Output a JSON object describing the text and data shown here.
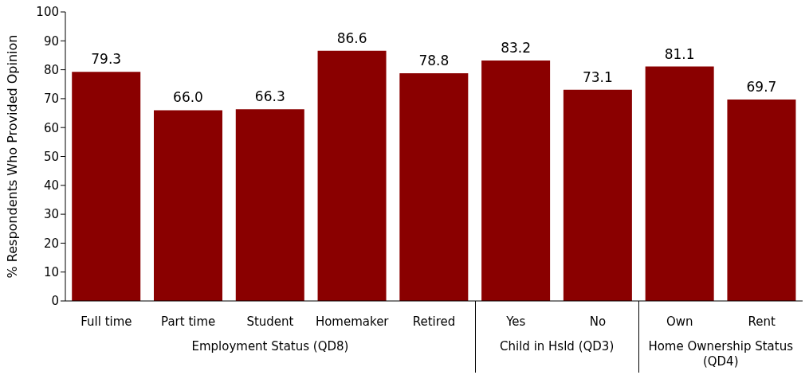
{
  "chart_data": {
    "type": "bar",
    "ylabel": "% Respondents Who Provided Opinion",
    "categories": [
      "Full time",
      "Part time",
      "Student",
      "Homemaker",
      "Retired",
      "Yes",
      "No",
      "Own",
      "Rent"
    ],
    "values": [
      79.3,
      66.0,
      66.3,
      86.6,
      78.8,
      83.2,
      73.1,
      81.1,
      69.7
    ],
    "value_labels": [
      "79.3",
      "66.0",
      "66.3",
      "86.6",
      "78.8",
      "83.2",
      "73.1",
      "81.1",
      "69.7"
    ],
    "color": "#8a0000",
    "ylim": [
      0,
      100
    ],
    "yticks": [
      0,
      10,
      20,
      30,
      40,
      50,
      60,
      70,
      80,
      90,
      100
    ],
    "annotations": [
      "Employment Status (QD8)",
      "Child in Hsld (QD3)",
      "Home Ownership Status (QD4)"
    ]
  }
}
